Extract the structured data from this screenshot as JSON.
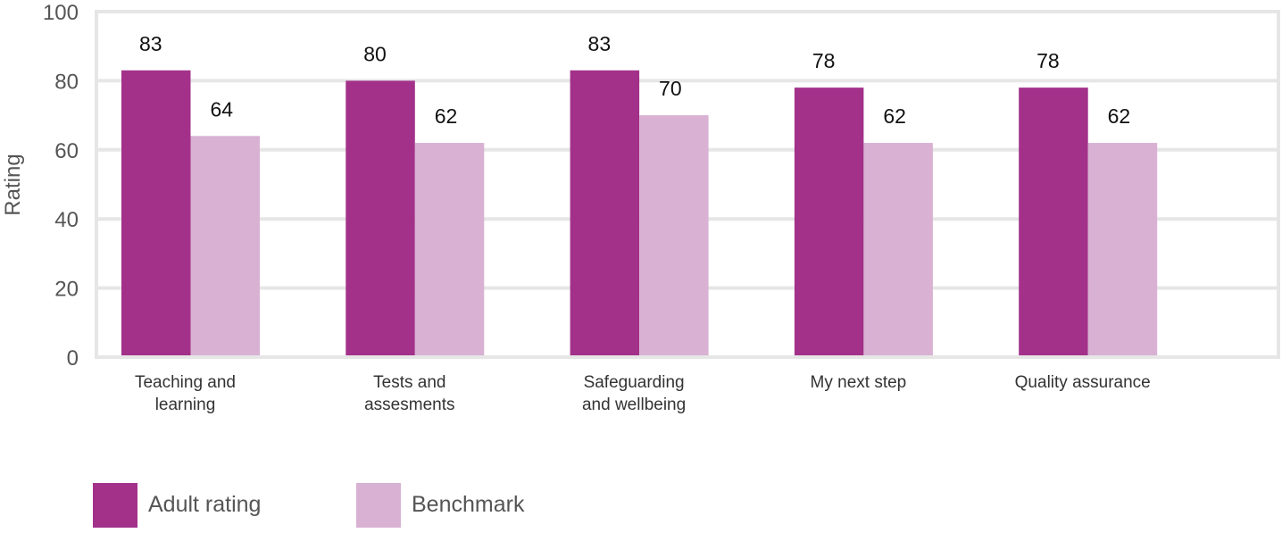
{
  "chart_data": {
    "type": "bar",
    "title": "",
    "xlabel": "",
    "ylabel": "Rating",
    "ylim": [
      0,
      100
    ],
    "yticks": [
      0,
      20,
      40,
      60,
      80,
      100
    ],
    "grid": true,
    "legend_placement": "bottom-left",
    "categories": [
      [
        "Teaching and",
        "learning"
      ],
      [
        "Tests and",
        "assesments"
      ],
      [
        "Safeguarding",
        "and wellbeing"
      ],
      [
        "My next step"
      ],
      [
        "Quality assurance"
      ]
    ],
    "series": [
      {
        "name": "Adult rating",
        "color": "#a3318a",
        "values": [
          83,
          80,
          83,
          78,
          78
        ]
      },
      {
        "name": "Benchmark",
        "color": "#d8b1d3",
        "values": [
          64,
          62,
          70,
          62,
          62
        ]
      }
    ]
  }
}
